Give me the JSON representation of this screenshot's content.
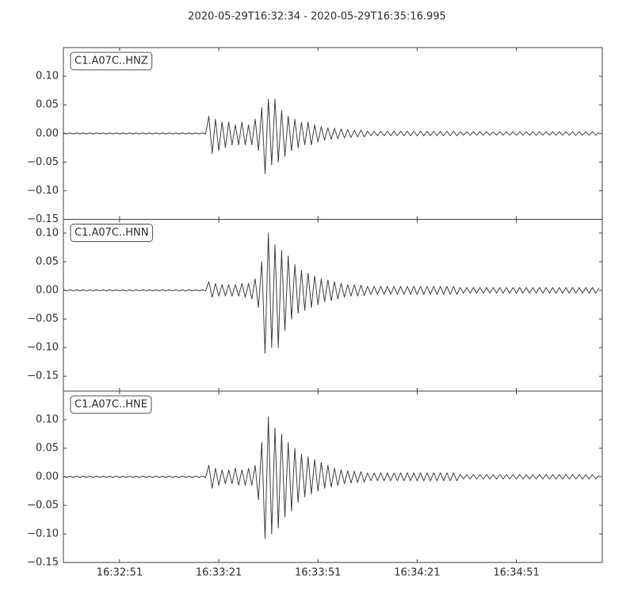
{
  "title": "2020-05-29T16:32:34  -  2020-05-29T16:35:16.995",
  "chart_data": [
    {
      "type": "line",
      "xlim": [
        0,
        162.995
      ],
      "ylim": [
        -0.15,
        0.15
      ],
      "yticks": [
        {
          "value": -0.15,
          "label": "−0.15"
        },
        {
          "value": -0.1,
          "label": "−0.10"
        },
        {
          "value": -0.05,
          "label": "−0.05"
        },
        {
          "value": 0,
          "label": "0.00"
        },
        {
          "value": 0.05,
          "label": "0.05"
        },
        {
          "value": 0.1,
          "label": "0.10"
        }
      ],
      "x": [
        0,
        1,
        2,
        3,
        4,
        5,
        6,
        7,
        8,
        9,
        10,
        11,
        12,
        13,
        14,
        15,
        16,
        17,
        18,
        19,
        20,
        21,
        22,
        23,
        24,
        25,
        26,
        27,
        28,
        29,
        30,
        31,
        32,
        33,
        34,
        35,
        36,
        37,
        38,
        39,
        40,
        41,
        42,
        43,
        44,
        45,
        46,
        47,
        48,
        49,
        50,
        51,
        52,
        53,
        54,
        55,
        56,
        57,
        58,
        59,
        60,
        61,
        62,
        63,
        64,
        65,
        66,
        67,
        68,
        69,
        70,
        71,
        72,
        73,
        74,
        75,
        76,
        77,
        78,
        79,
        80,
        81,
        82,
        83,
        84,
        85,
        86,
        87,
        88,
        89,
        90,
        91,
        92,
        93,
        94,
        95,
        96,
        97,
        98,
        99,
        100,
        101,
        102,
        103,
        104,
        105,
        106,
        107,
        108,
        109,
        110,
        111,
        112,
        113,
        114,
        115,
        116,
        117,
        118,
        119,
        120,
        121,
        122,
        123,
        124,
        125,
        126,
        127,
        128,
        129,
        130,
        131,
        132,
        133,
        134,
        135,
        136,
        137,
        138,
        139,
        140,
        141,
        142,
        143,
        144,
        145,
        146,
        147,
        148,
        149,
        150,
        151,
        152,
        153,
        154,
        155,
        156,
        157,
        158,
        159,
        160,
        161,
        162
      ],
      "series": [
        {
          "name": "C1.A07C..HNZ",
          "color": "#444444",
          "values": [
            0.001,
            -0.001,
            0.001,
            -0.001,
            0.001,
            -0.001,
            0.001,
            -0.001,
            0.001,
            -0.001,
            0.001,
            -0.001,
            0.001,
            -0.001,
            0.001,
            -0.001,
            0.001,
            -0.001,
            0.001,
            -0.001,
            0.001,
            -0.001,
            0.001,
            -0.001,
            0.001,
            -0.001,
            0.001,
            -0.001,
            0.001,
            -0.001,
            0.001,
            -0.001,
            0.001,
            -0.001,
            0.001,
            -0.001,
            0.001,
            -0.001,
            0.001,
            -0.001,
            0.001,
            -0.001,
            0.001,
            -0.001,
            0.03,
            -0.035,
            0.025,
            -0.03,
            0.02,
            -0.025,
            0.02,
            -0.02,
            0.015,
            -0.02,
            0.02,
            -0.02,
            0.015,
            -0.02,
            0.025,
            -0.03,
            0.045,
            -0.07,
            0.06,
            -0.055,
            0.06,
            -0.05,
            0.04,
            -0.04,
            0.03,
            -0.03,
            0.025,
            -0.025,
            0.02,
            -0.02,
            0.02,
            -0.02,
            0.015,
            -0.015,
            0.012,
            -0.012,
            0.01,
            -0.01,
            0.009,
            -0.009,
            0.008,
            -0.008,
            0.007,
            -0.007,
            0.006,
            -0.006,
            0.006,
            -0.006,
            0.004,
            -0.004,
            0.004,
            -0.004,
            0.004,
            -0.004,
            0.004,
            -0.004,
            0.004,
            -0.004,
            0.004,
            -0.004,
            0.004,
            -0.004,
            0.004,
            -0.004,
            0.004,
            -0.004,
            0.004,
            -0.004,
            0.004,
            -0.004,
            0.004,
            -0.004,
            0.004,
            -0.004,
            0.004,
            -0.004,
            0.003,
            -0.003,
            0.003,
            -0.003,
            0.003,
            -0.003,
            0.003,
            -0.003,
            0.003,
            -0.003,
            0.003,
            -0.003,
            0.003,
            -0.003,
            0.003,
            -0.003,
            0.003,
            -0.003,
            0.003,
            -0.003,
            0.003,
            -0.003,
            0.003,
            -0.003,
            0.003,
            -0.003,
            0.003,
            -0.003,
            0.003,
            -0.003,
            0.003,
            -0.003,
            0.003,
            -0.003,
            0.003,
            -0.003,
            0.003,
            -0.003,
            0.003,
            -0.003,
            0.003,
            -0.003,
            0.002
          ]
        }
      ]
    },
    {
      "type": "line",
      "xlim": [
        0,
        162.995
      ],
      "ylim": [
        -0.176,
        0.124
      ],
      "yticks": [
        {
          "value": -0.15,
          "label": "−0.15"
        },
        {
          "value": -0.1,
          "label": "−0.10"
        },
        {
          "value": -0.05,
          "label": "−0.05"
        },
        {
          "value": 0,
          "label": "0.00"
        },
        {
          "value": 0.05,
          "label": "0.05"
        },
        {
          "value": 0.1,
          "label": "0.10"
        }
      ],
      "x": [
        0,
        1,
        2,
        3,
        4,
        5,
        6,
        7,
        8,
        9,
        10,
        11,
        12,
        13,
        14,
        15,
        16,
        17,
        18,
        19,
        20,
        21,
        22,
        23,
        24,
        25,
        26,
        27,
        28,
        29,
        30,
        31,
        32,
        33,
        34,
        35,
        36,
        37,
        38,
        39,
        40,
        41,
        42,
        43,
        44,
        45,
        46,
        47,
        48,
        49,
        50,
        51,
        52,
        53,
        54,
        55,
        56,
        57,
        58,
        59,
        60,
        61,
        62,
        63,
        64,
        65,
        66,
        67,
        68,
        69,
        70,
        71,
        72,
        73,
        74,
        75,
        76,
        77,
        78,
        79,
        80,
        81,
        82,
        83,
        84,
        85,
        86,
        87,
        88,
        89,
        90,
        91,
        92,
        93,
        94,
        95,
        96,
        97,
        98,
        99,
        100,
        101,
        102,
        103,
        104,
        105,
        106,
        107,
        108,
        109,
        110,
        111,
        112,
        113,
        114,
        115,
        116,
        117,
        118,
        119,
        120,
        121,
        122,
        123,
        124,
        125,
        126,
        127,
        128,
        129,
        130,
        131,
        132,
        133,
        134,
        135,
        136,
        137,
        138,
        139,
        140,
        141,
        142,
        143,
        144,
        145,
        146,
        147,
        148,
        149,
        150,
        151,
        152,
        153,
        154,
        155,
        156,
        157,
        158,
        159,
        160,
        161,
        162
      ],
      "series": [
        {
          "name": "C1.A07C..HNN",
          "color": "#444444",
          "values": [
            0.001,
            -0.001,
            0.001,
            -0.001,
            0.001,
            -0.001,
            0.001,
            -0.001,
            0.001,
            -0.001,
            0.001,
            -0.001,
            0.001,
            -0.001,
            0.001,
            -0.001,
            0.001,
            -0.001,
            0.001,
            -0.001,
            0.001,
            -0.001,
            0.001,
            -0.001,
            0.001,
            -0.001,
            0.001,
            -0.001,
            0.001,
            -0.001,
            0.001,
            -0.001,
            0.001,
            -0.001,
            0.001,
            -0.001,
            0.001,
            -0.001,
            0.001,
            -0.001,
            0.001,
            -0.001,
            0.001,
            -0.001,
            0.015,
            -0.012,
            0.012,
            -0.01,
            0.01,
            -0.01,
            0.01,
            -0.01,
            0.01,
            -0.01,
            0.012,
            -0.012,
            0.012,
            -0.015,
            0.02,
            -0.03,
            0.05,
            -0.11,
            0.1,
            -0.1,
            0.08,
            -0.1,
            0.07,
            -0.07,
            0.06,
            -0.05,
            0.045,
            -0.04,
            0.035,
            -0.035,
            0.03,
            -0.03,
            0.025,
            -0.025,
            0.02,
            -0.02,
            0.018,
            -0.018,
            0.015,
            -0.015,
            0.012,
            -0.012,
            0.01,
            -0.01,
            0.01,
            -0.01,
            0.009,
            -0.009,
            0.007,
            -0.007,
            0.007,
            -0.007,
            0.007,
            -0.007,
            0.007,
            -0.007,
            0.007,
            -0.007,
            0.007,
            -0.007,
            0.007,
            -0.007,
            0.007,
            -0.007,
            0.007,
            -0.007,
            0.007,
            -0.007,
            0.007,
            -0.007,
            0.007,
            -0.007,
            0.007,
            -0.007,
            0.007,
            -0.007,
            0.005,
            -0.005,
            0.005,
            -0.005,
            0.005,
            -0.005,
            0.005,
            -0.005,
            0.005,
            -0.005,
            0.005,
            -0.005,
            0.005,
            -0.005,
            0.005,
            -0.005,
            0.005,
            -0.005,
            0.005,
            -0.005,
            0.005,
            -0.005,
            0.005,
            -0.005,
            0.005,
            -0.005,
            0.005,
            -0.005,
            0.005,
            -0.005,
            0.005,
            -0.005,
            0.005,
            -0.005,
            0.005,
            -0.005,
            0.005,
            -0.005,
            0.005,
            -0.005,
            0.005,
            -0.005,
            0.004
          ]
        }
      ]
    },
    {
      "type": "line",
      "xlim": [
        0,
        162.995
      ],
      "ylim": [
        -0.15,
        0.15
      ],
      "yticks": [
        {
          "value": -0.15,
          "label": "−0.15"
        },
        {
          "value": -0.1,
          "label": "−0.10"
        },
        {
          "value": -0.05,
          "label": "−0.05"
        },
        {
          "value": 0,
          "label": "0.00"
        },
        {
          "value": 0.05,
          "label": "0.05"
        },
        {
          "value": 0.1,
          "label": "0.10"
        }
      ],
      "xticks": [
        {
          "value": 17,
          "label": "16:32:51"
        },
        {
          "value": 47,
          "label": "16:33:21"
        },
        {
          "value": 77,
          "label": "16:33:51"
        },
        {
          "value": 107,
          "label": "16:34:21"
        },
        {
          "value": 137,
          "label": "16:34:51"
        }
      ],
      "x": [
        0,
        1,
        2,
        3,
        4,
        5,
        6,
        7,
        8,
        9,
        10,
        11,
        12,
        13,
        14,
        15,
        16,
        17,
        18,
        19,
        20,
        21,
        22,
        23,
        24,
        25,
        26,
        27,
        28,
        29,
        30,
        31,
        32,
        33,
        34,
        35,
        36,
        37,
        38,
        39,
        40,
        41,
        42,
        43,
        44,
        45,
        46,
        47,
        48,
        49,
        50,
        51,
        52,
        53,
        54,
        55,
        56,
        57,
        58,
        59,
        60,
        61,
        62,
        63,
        64,
        65,
        66,
        67,
        68,
        69,
        70,
        71,
        72,
        73,
        74,
        75,
        76,
        77,
        78,
        79,
        80,
        81,
        82,
        83,
        84,
        85,
        86,
        87,
        88,
        89,
        90,
        91,
        92,
        93,
        94,
        95,
        96,
        97,
        98,
        99,
        100,
        101,
        102,
        103,
        104,
        105,
        106,
        107,
        108,
        109,
        110,
        111,
        112,
        113,
        114,
        115,
        116,
        117,
        118,
        119,
        120,
        121,
        122,
        123,
        124,
        125,
        126,
        127,
        128,
        129,
        130,
        131,
        132,
        133,
        134,
        135,
        136,
        137,
        138,
        139,
        140,
        141,
        142,
        143,
        144,
        145,
        146,
        147,
        148,
        149,
        150,
        151,
        152,
        153,
        154,
        155,
        156,
        157,
        158,
        159,
        160,
        161,
        162
      ],
      "series": [
        {
          "name": "C1.A07C..HNE",
          "color": "#444444",
          "values": [
            0.001,
            -0.001,
            0.001,
            -0.001,
            0.001,
            -0.001,
            0.001,
            -0.001,
            0.001,
            -0.001,
            0.001,
            -0.001,
            0.001,
            -0.001,
            0.001,
            -0.001,
            0.001,
            -0.001,
            0.001,
            -0.001,
            0.001,
            -0.001,
            0.001,
            -0.001,
            0.001,
            -0.001,
            0.001,
            -0.001,
            0.001,
            -0.001,
            0.001,
            -0.001,
            0.001,
            -0.001,
            0.001,
            -0.001,
            0.001,
            -0.001,
            0.001,
            -0.001,
            0.001,
            -0.001,
            0.001,
            -0.001,
            0.02,
            -0.02,
            0.015,
            -0.015,
            0.012,
            -0.012,
            0.012,
            -0.012,
            0.015,
            -0.015,
            0.012,
            -0.015,
            0.015,
            -0.015,
            0.02,
            -0.04,
            0.06,
            -0.108,
            0.105,
            -0.1,
            0.085,
            -0.09,
            0.075,
            -0.07,
            0.06,
            -0.06,
            0.05,
            -0.045,
            0.04,
            -0.035,
            0.035,
            -0.03,
            0.03,
            -0.025,
            0.025,
            -0.02,
            0.02,
            -0.018,
            0.015,
            -0.015,
            0.012,
            -0.012,
            0.011,
            -0.011,
            0.01,
            -0.01,
            0.009,
            -0.009,
            0.007,
            -0.007,
            0.007,
            -0.007,
            0.007,
            -0.007,
            0.007,
            -0.007,
            0.007,
            -0.007,
            0.007,
            -0.007,
            0.007,
            -0.007,
            0.007,
            -0.007,
            0.007,
            -0.007,
            0.007,
            -0.007,
            0.007,
            -0.007,
            0.007,
            -0.007,
            0.007,
            -0.007,
            0.007,
            -0.007,
            0.004,
            -0.004,
            0.004,
            -0.004,
            0.004,
            -0.004,
            0.004,
            -0.004,
            0.004,
            -0.004,
            0.004,
            -0.004,
            0.004,
            -0.004,
            0.004,
            -0.004,
            0.004,
            -0.004,
            0.004,
            -0.004,
            0.004,
            -0.004,
            0.004,
            -0.004,
            0.004,
            -0.004,
            0.004,
            -0.004,
            0.004,
            -0.004,
            0.004,
            -0.004,
            0.004,
            -0.004,
            0.004,
            -0.004,
            0.004,
            -0.004,
            0.004,
            -0.004,
            0.004,
            -0.004,
            0.003
          ]
        }
      ]
    }
  ]
}
